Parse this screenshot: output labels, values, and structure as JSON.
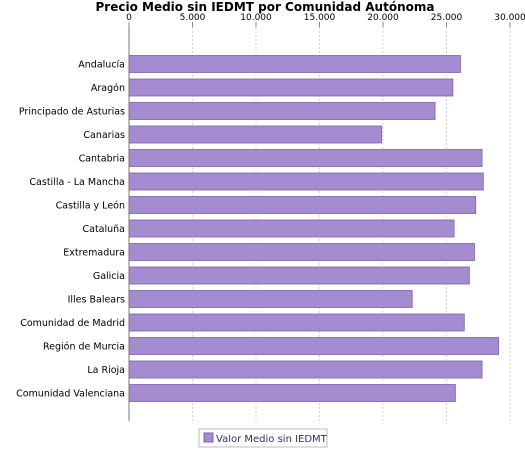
{
  "chart_data": {
    "type": "bar",
    "orientation": "horizontal",
    "title": "Precio Medio sin IEDMT por Comunidad Autónoma",
    "categories": [
      "Andalucía",
      "Aragón",
      "Principado de Asturias",
      "Canarias",
      "Cantabria",
      "Castilla - La Mancha",
      "Castilla y León",
      "Cataluña",
      "Extremadura",
      "Galicia",
      "Illes Balears",
      "Comunidad de Madrid",
      "Región de Murcia",
      "La Rioja",
      "Comunidad Valenciana"
    ],
    "series": [
      {
        "name": "Valor Medio sin IEDMT",
        "values": [
          26100,
          25500,
          24100,
          19900,
          27800,
          27900,
          27300,
          25600,
          27200,
          26800,
          22300,
          26400,
          29100,
          27800,
          25700
        ]
      }
    ],
    "xlim": [
      0,
      30000
    ],
    "ticks": [
      "0",
      "5.000",
      "10.000",
      "15.000",
      "20.000",
      "25.000",
      "30.000"
    ],
    "tick_values": [
      0,
      5000,
      10000,
      15000,
      20000,
      25000,
      30000
    ],
    "axis_position": "top",
    "grid": true,
    "legend_position": "bottom-center",
    "colors": {
      "bar_fill": "#a58bd0",
      "bar_stroke": "#7a62a8",
      "grid": "#c8c8c8"
    }
  }
}
